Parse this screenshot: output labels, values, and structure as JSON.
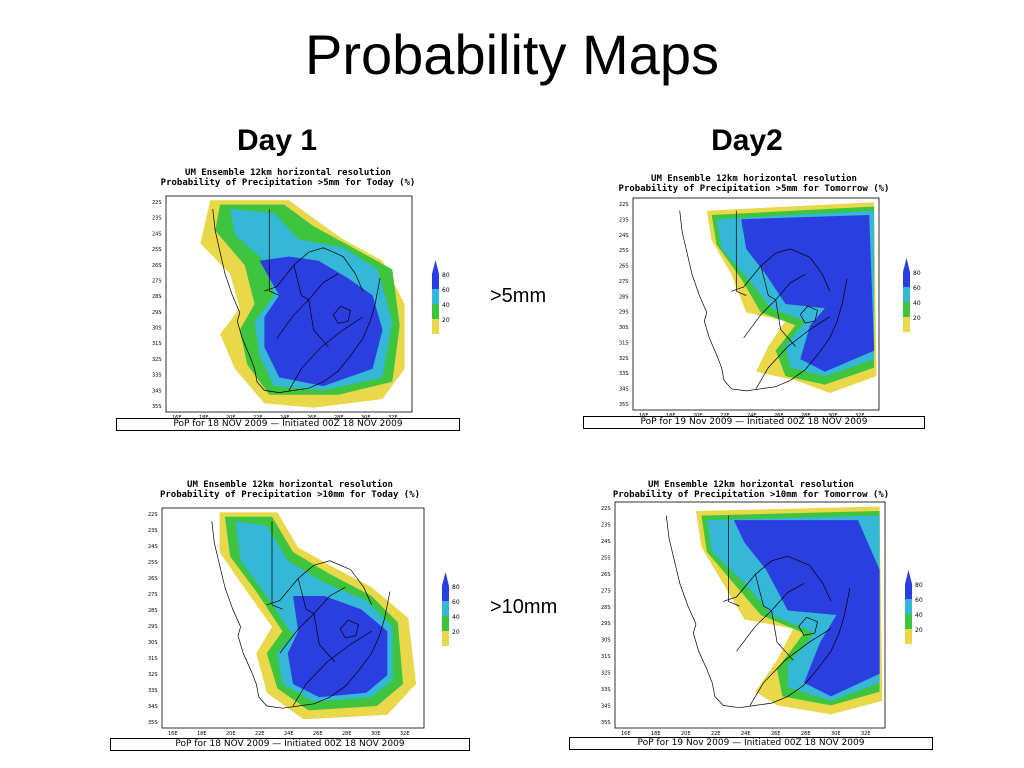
{
  "slide": {
    "title": "Probability Maps"
  },
  "columns": {
    "day1": "Day 1",
    "day2": "Day2"
  },
  "thresholds": {
    "t5": ">5mm",
    "t10": ">10mm"
  },
  "colors": {
    "yellow": "#e8d84a",
    "green": "#3ec43e",
    "teal": "#35b7d8",
    "blue": "#2b3fe0",
    "land": "#ffffff",
    "border": "#000000"
  },
  "legend": {
    "values": [
      "80",
      "60",
      "40",
      "20"
    ]
  },
  "lat_labels": [
    "22S",
    "23S",
    "24S",
    "25S",
    "26S",
    "27S",
    "28S",
    "29S",
    "30S",
    "31S",
    "32S",
    "33S",
    "34S",
    "35S"
  ],
  "lon_labels": [
    "16E",
    "18E",
    "20E",
    "22E",
    "24E",
    "26E",
    "28E",
    "30E",
    "32E"
  ],
  "panels": [
    {
      "id": "p1",
      "title_line1": "UM Ensemble 12km horizontal resolution",
      "title_line2": "Probability of Precipitation >5mm for Today (%)",
      "caption": "PoP  for  18  NOV  2009  —  Initiated  00Z  18  NOV  2009"
    },
    {
      "id": "p2",
      "title_line1": "UM Ensemble 12km horizontal resolution",
      "title_line2": "Probability of Precipitation >5mm for Tomorrow (%)",
      "caption": "PoP  for  19  Nov  2009  —  Initiated  00Z  18  NOV  2009"
    },
    {
      "id": "p3",
      "title_line1": "UM Ensemble 12km horizontal resolution",
      "title_line2": "Probability of Precipitation >10mm for Today (%)",
      "caption": "PoP  for  18  NOV  2009  —  Initiated  00Z  18  NOV  2009"
    },
    {
      "id": "p4",
      "title_line1": "UM Ensemble 12km horizontal resolution",
      "title_line2": "Probability of Precipitation >10mm for Tomorrow (%)",
      "caption": "PoP  for  19  Nov  2009  —  Initiated  00Z  18  NOV  2009"
    }
  ]
}
